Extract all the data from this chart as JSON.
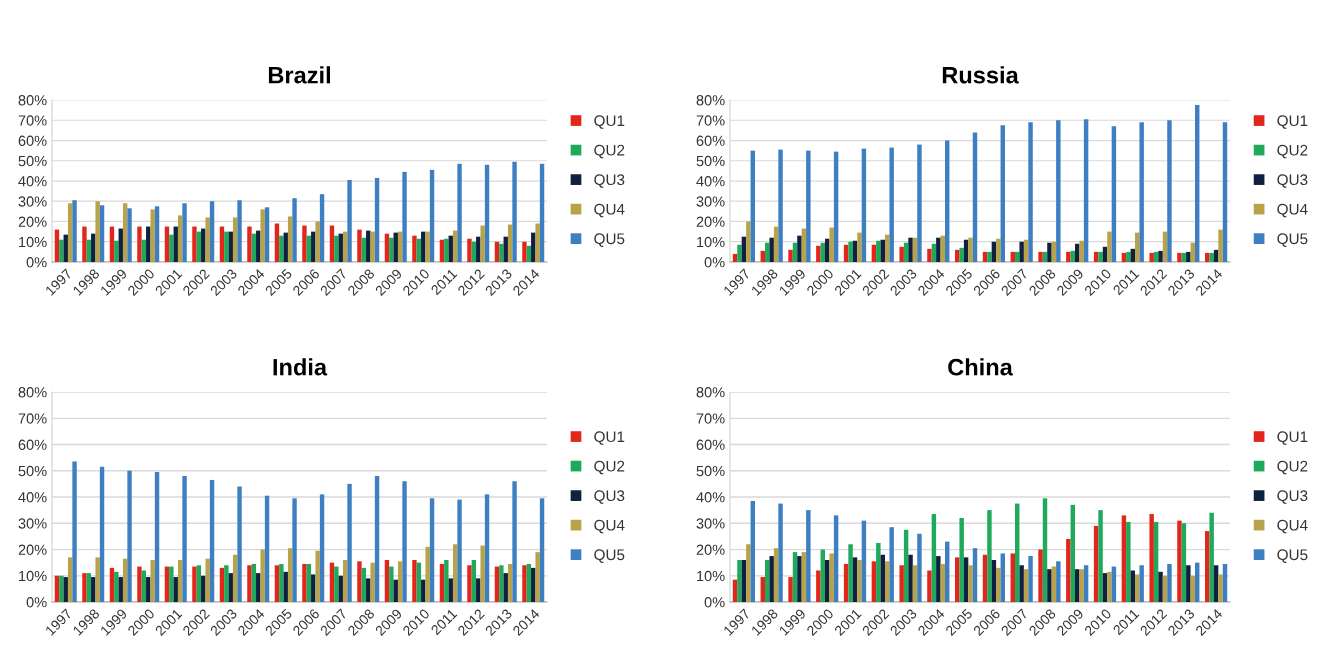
{
  "chart_data": [
    {
      "type": "bar",
      "title": "Brazil",
      "categories": [
        "1997",
        "1998",
        "1999",
        "2000",
        "2001",
        "2002",
        "2003",
        "2004",
        "2005",
        "2006",
        "2007",
        "2008",
        "2009",
        "2010",
        "2011",
        "2012",
        "2013",
        "2014"
      ],
      "ylim": [
        0,
        80
      ],
      "yticks": [
        {
          "value": 0,
          "label": "0%"
        },
        {
          "value": 10,
          "label": "10%"
        },
        {
          "value": 20,
          "label": "20%"
        },
        {
          "value": 30,
          "label": "30%"
        },
        {
          "value": 40,
          "label": "40%"
        },
        {
          "value": 50,
          "label": "50%"
        },
        {
          "value": 60,
          "label": "60%"
        },
        {
          "value": 70,
          "label": "70%"
        },
        {
          "value": 80,
          "label": "80%"
        }
      ],
      "grid": "y",
      "legend": "right",
      "series": [
        {
          "name": "QU1",
          "color": "#e3261c",
          "values": [
            16,
            17.5,
            17.5,
            17.5,
            17.5,
            17.5,
            17.5,
            17.5,
            19,
            18,
            18,
            16,
            14,
            13,
            11,
            11.5,
            10,
            10
          ]
        },
        {
          "name": "QU2",
          "color": "#1fa95b",
          "values": [
            11,
            11,
            10.5,
            11,
            13.5,
            15,
            15,
            14,
            13,
            13,
            13,
            12,
            12,
            11.5,
            11.5,
            10,
            9,
            8
          ]
        },
        {
          "name": "QU3",
          "color": "#0f2140",
          "values": [
            13.5,
            14,
            16.5,
            17.5,
            17.5,
            16.5,
            15,
            15.5,
            14.5,
            15,
            14,
            15.5,
            14.5,
            15,
            13,
            12.5,
            12.5,
            14.5
          ]
        },
        {
          "name": "QU4",
          "color": "#b8a24a",
          "values": [
            29,
            30,
            29,
            26,
            23,
            22,
            22,
            26,
            22.5,
            20,
            15,
            15,
            15,
            15,
            15.5,
            18,
            18.5,
            19
          ]
        },
        {
          "name": "QU5",
          "color": "#3d7fc1",
          "values": [
            30.5,
            28,
            26.5,
            27.5,
            29,
            30,
            30.5,
            27,
            31.5,
            33.5,
            40.5,
            41.5,
            44.5,
            45.5,
            48.5,
            48,
            49.5,
            48.5
          ]
        }
      ]
    },
    {
      "type": "bar",
      "title": "Russia",
      "categories": [
        "1997",
        "1998",
        "1999",
        "2000",
        "2001",
        "2002",
        "2003",
        "2004",
        "2005",
        "2006",
        "2007",
        "2008",
        "2009",
        "2010",
        "2011",
        "2012",
        "2013",
        "2014"
      ],
      "ylim": [
        0,
        80
      ],
      "yticks": [
        {
          "value": 0,
          "label": "0%"
        },
        {
          "value": 10,
          "label": "10%"
        },
        {
          "value": 20,
          "label": "20%"
        },
        {
          "value": 30,
          "label": "30%"
        },
        {
          "value": 40,
          "label": "40%"
        },
        {
          "value": 50,
          "label": "50%"
        },
        {
          "value": 60,
          "label": "60%"
        },
        {
          "value": 70,
          "label": "70%"
        },
        {
          "value": 80,
          "label": "80%"
        }
      ],
      "grid": "y",
      "legend": "right",
      "series": [
        {
          "name": "QU1",
          "color": "#e3261c",
          "values": [
            4,
            5.5,
            6,
            8,
            8.5,
            8.5,
            7.5,
            6.5,
            6,
            5,
            5,
            5,
            5,
            5,
            4.5,
            4.5,
            4.5,
            4.5
          ]
        },
        {
          "name": "QU2",
          "color": "#1fa95b",
          "values": [
            8.5,
            9.5,
            9.5,
            9.5,
            10,
            10.5,
            9.5,
            9,
            7,
            5,
            5,
            5,
            5.5,
            5,
            5,
            5,
            4.5,
            4.5
          ]
        },
        {
          "name": "QU3",
          "color": "#0f2140",
          "values": [
            12.5,
            12,
            13,
            11.5,
            10.5,
            11,
            12,
            12,
            11,
            10,
            10,
            9.5,
            9,
            7.5,
            6.5,
            5.5,
            5,
            6
          ]
        },
        {
          "name": "QU4",
          "color": "#b8a24a",
          "values": [
            20,
            17.5,
            16.5,
            17,
            14.5,
            13.5,
            12,
            13,
            12,
            11.5,
            11,
            10,
            10.5,
            15,
            14.5,
            15,
            9.5,
            16
          ]
        },
        {
          "name": "QU5",
          "color": "#3d7fc1",
          "values": [
            55,
            55.5,
            55,
            54.5,
            56,
            56.5,
            58,
            60,
            64,
            67.5,
            69,
            70,
            70.5,
            67,
            69,
            70,
            77.5,
            69
          ]
        }
      ]
    },
    {
      "type": "bar",
      "title": "India",
      "categories": [
        "1997",
        "1998",
        "1999",
        "2000",
        "2001",
        "2002",
        "2003",
        "2004",
        "2005",
        "2006",
        "2007",
        "2008",
        "2009",
        "2010",
        "2011",
        "2012",
        "2013",
        "2014"
      ],
      "ylim": [
        0,
        80
      ],
      "yticks": [
        {
          "value": 0,
          "label": "0%"
        },
        {
          "value": 10,
          "label": "10%"
        },
        {
          "value": 20,
          "label": "20%"
        },
        {
          "value": 30,
          "label": "30%"
        },
        {
          "value": 40,
          "label": "40%"
        },
        {
          "value": 50,
          "label": "50%"
        },
        {
          "value": 60,
          "label": "60%"
        },
        {
          "value": 70,
          "label": "70%"
        },
        {
          "value": 80,
          "label": "80%"
        }
      ],
      "grid": "y",
      "legend": "right",
      "series": [
        {
          "name": "QU1",
          "color": "#e3261c",
          "values": [
            10,
            11,
            13,
            13.5,
            13.5,
            13.5,
            13,
            14,
            14,
            14.5,
            15,
            15.5,
            16,
            16,
            14.5,
            14,
            13.5,
            14
          ]
        },
        {
          "name": "QU2",
          "color": "#1fa95b",
          "values": [
            10,
            11,
            11.5,
            12,
            13.5,
            14,
            14,
            14.5,
            14.5,
            14.5,
            13.5,
            13,
            13.5,
            15,
            16,
            16,
            14,
            14.5
          ]
        },
        {
          "name": "QU3",
          "color": "#0f2140",
          "values": [
            9.5,
            9.5,
            9.5,
            9.5,
            9.5,
            10,
            11,
            11,
            11.5,
            10.5,
            10,
            9,
            8.5,
            8.5,
            9,
            9,
            11,
            13
          ]
        },
        {
          "name": "QU4",
          "color": "#b8a24a",
          "values": [
            17,
            17,
            16.5,
            16,
            16,
            16.5,
            18,
            20,
            20.5,
            19.5,
            16,
            15,
            15.5,
            21,
            22,
            21.5,
            14.5,
            19
          ]
        },
        {
          "name": "QU5",
          "color": "#3d7fc1",
          "values": [
            53.5,
            51.5,
            50,
            49.5,
            48,
            46.5,
            44,
            40.5,
            39.5,
            41,
            45,
            48,
            46,
            39.5,
            39,
            41,
            46,
            39.5
          ]
        }
      ]
    },
    {
      "type": "bar",
      "title": "China",
      "categories": [
        "1997",
        "1998",
        "1999",
        "2000",
        "2001",
        "2002",
        "2003",
        "2004",
        "2005",
        "2006",
        "2007",
        "2008",
        "2009",
        "2010",
        "2011",
        "2012",
        "2013",
        "2014"
      ],
      "ylim": [
        0,
        80
      ],
      "yticks": [
        {
          "value": 0,
          "label": "0%"
        },
        {
          "value": 10,
          "label": "10%"
        },
        {
          "value": 20,
          "label": "20%"
        },
        {
          "value": 30,
          "label": "30%"
        },
        {
          "value": 40,
          "label": "40%"
        },
        {
          "value": 50,
          "label": "50%"
        },
        {
          "value": 60,
          "label": "60%"
        },
        {
          "value": 70,
          "label": "70%"
        },
        {
          "value": 80,
          "label": "80%"
        }
      ],
      "grid": "y",
      "legend": "right",
      "series": [
        {
          "name": "QU1",
          "color": "#e3261c",
          "values": [
            8.5,
            9.5,
            9.5,
            12,
            14.5,
            15.5,
            14,
            12,
            17,
            18,
            18.5,
            20,
            24,
            29,
            33,
            33.5,
            31,
            27
          ]
        },
        {
          "name": "QU2",
          "color": "#1fa95b",
          "values": [
            16,
            16,
            19,
            20,
            22,
            22.5,
            27.5,
            33.5,
            32,
            35,
            37.5,
            39.5,
            37,
            35,
            30.5,
            30.5,
            30,
            34
          ]
        },
        {
          "name": "QU3",
          "color": "#0f2140",
          "values": [
            16,
            17.5,
            17.5,
            16,
            17,
            18,
            18,
            17.5,
            17,
            16,
            14,
            12.5,
            12.5,
            11,
            12,
            11.5,
            14,
            14
          ]
        },
        {
          "name": "QU4",
          "color": "#b8a24a",
          "values": [
            22,
            20.5,
            19,
            18.5,
            16,
            15.5,
            14,
            14.5,
            14,
            13,
            12.5,
            13.5,
            12.5,
            11.5,
            10.5,
            10,
            10,
            10.5
          ]
        },
        {
          "name": "QU5",
          "color": "#3d7fc1",
          "values": [
            38.5,
            37.5,
            35,
            33,
            31,
            28.5,
            26,
            23,
            20.5,
            18.5,
            17.5,
            15.5,
            14,
            13.5,
            14,
            14.5,
            15,
            14.5
          ]
        }
      ]
    }
  ]
}
